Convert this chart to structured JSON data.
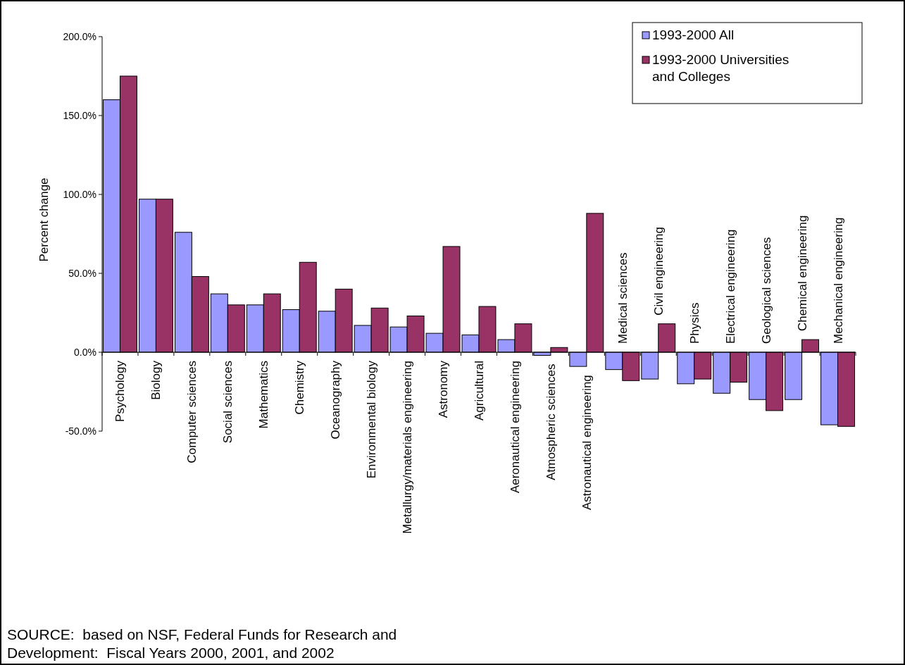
{
  "chart_data": {
    "type": "bar",
    "ylabel": "Percent change",
    "categories": [
      "Psychology",
      "Biology",
      "Computer sciences",
      "Social sciences",
      "Mathematics",
      "Chemistry",
      "Oceanography",
      "Environmental biology",
      "Metallurgy/materials engineering",
      "Astronomy",
      "Agricultural",
      "Aeronautical engineering",
      "Atmospheric sciences",
      "Astronautical engineering",
      "Medical sciences",
      "Civil engineering",
      "Physics",
      "Electrical engineering",
      "Geological sciences",
      "Chemical engineering",
      "Mechanical engineering"
    ],
    "series": [
      {
        "name": "1993-2000 All",
        "color": "#9999ff",
        "values": [
          160,
          97,
          76,
          37,
          30,
          27,
          26,
          17,
          16,
          12,
          11,
          8,
          -2,
          -9,
          -11,
          -17,
          -20,
          -26,
          -30,
          -30,
          -46
        ]
      },
      {
        "name": "1993-2000 Universities and Colleges",
        "color": "#993366",
        "values": [
          175,
          97,
          48,
          30,
          37,
          57,
          40,
          28,
          23,
          67,
          29,
          18,
          3,
          88,
          -18,
          18,
          -17,
          -19,
          -37,
          8,
          -47
        ]
      }
    ],
    "ylim": [
      -50,
      200
    ],
    "yticks": [
      {
        "value": -50,
        "label": "-50.0%"
      },
      {
        "value": 0,
        "label": "0.0%"
      },
      {
        "value": 50,
        "label": "50.0%"
      },
      {
        "value": 100,
        "label": "100.0%"
      },
      {
        "value": 150,
        "label": "150.0%"
      },
      {
        "value": 200,
        "label": "200.0%"
      }
    ],
    "grid": false,
    "legend": "top right",
    "annotations": [
      "SOURCE:  based on NSF, Federal Funds for Research and Development:  Fiscal Years 2000, 2001, and 2002"
    ]
  }
}
